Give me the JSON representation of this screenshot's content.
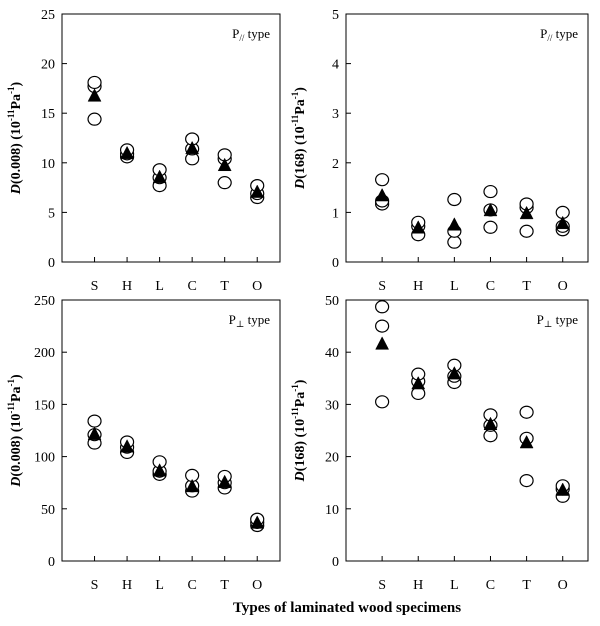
{
  "figure": {
    "x_title": "Types of laminated wood specimens"
  },
  "chart_data": [
    {
      "type": "scatter",
      "panel": "top-left",
      "annotation": {
        "main": "P",
        "sub": "//",
        "suffix": " type"
      },
      "ylabel": {
        "main": "D",
        "arg": "(0.008)",
        "unit_pre": " (10",
        "unit_exp1": "-11",
        "unit_mid": "Pa",
        "unit_exp2": "-1",
        "unit_post": ")"
      },
      "ylim": [
        0,
        25
      ],
      "yticks": [
        0,
        5,
        10,
        15,
        20,
        25
      ],
      "categories": [
        "S",
        "H",
        "L",
        "C",
        "T",
        "O"
      ],
      "series": [
        {
          "marker": "open-circle",
          "values": [
            [
              14.4,
              17.7,
              18.1
            ],
            [
              10.6,
              10.9,
              11.3
            ],
            [
              7.7,
              8.5,
              9.3
            ],
            [
              10.4,
              11.4,
              12.4
            ],
            [
              8.0,
              10.4,
              10.8
            ],
            [
              6.5,
              6.9,
              7.7
            ]
          ]
        },
        {
          "marker": "filled-triangle",
          "values": [
            16.7,
            10.9,
            8.5,
            11.4,
            9.7,
            7.0
          ]
        }
      ]
    },
    {
      "type": "scatter",
      "panel": "top-right",
      "annotation": {
        "main": "P",
        "sub": "//",
        "suffix": " type"
      },
      "ylabel": {
        "main": "D",
        "arg": "(168)",
        "unit_pre": " (10",
        "unit_exp1": "-11",
        "unit_mid": "Pa",
        "unit_exp2": "-1",
        "unit_post": ")"
      },
      "ylim": [
        0,
        5
      ],
      "yticks": [
        0,
        1,
        2,
        3,
        4,
        5
      ],
      "categories": [
        "S",
        "H",
        "L",
        "C",
        "T",
        "O"
      ],
      "series": [
        {
          "marker": "open-circle",
          "values": [
            [
              1.17,
              1.23,
              1.66
            ],
            [
              0.55,
              0.72,
              0.8
            ],
            [
              0.4,
              0.62,
              1.26
            ],
            [
              0.7,
              1.05,
              1.42
            ],
            [
              0.62,
              1.1,
              1.17
            ],
            [
              0.65,
              0.72,
              1.0
            ]
          ]
        },
        {
          "marker": "filled-triangle",
          "values": [
            1.33,
            0.68,
            0.74,
            1.03,
            0.97,
            0.77
          ]
        }
      ]
    },
    {
      "type": "scatter",
      "panel": "bottom-left",
      "annotation": {
        "main": "P",
        "sub": "⊥",
        "suffix": " type"
      },
      "ylabel": {
        "main": "D",
        "arg": "(0.008)",
        "unit_pre": " (10",
        "unit_exp1": "-11",
        "unit_mid": "Pa",
        "unit_exp2": "-1",
        "unit_post": ")"
      },
      "ylim": [
        0,
        250
      ],
      "yticks": [
        0,
        50,
        100,
        150,
        200,
        250
      ],
      "categories": [
        "S",
        "H",
        "L",
        "C",
        "T",
        "O"
      ],
      "series": [
        {
          "marker": "open-circle",
          "values": [
            [
              113,
              121,
              134
            ],
            [
              104,
              109,
              114
            ],
            [
              83,
              86,
              95
            ],
            [
              67,
              72,
              82
            ],
            [
              70,
              75,
              81
            ],
            [
              34,
              37,
              40
            ]
          ]
        },
        {
          "marker": "filled-triangle",
          "values": [
            121,
            109,
            86,
            71,
            75,
            36
          ]
        }
      ]
    },
    {
      "type": "scatter",
      "panel": "bottom-right",
      "annotation": {
        "main": "P",
        "sub": "⊥",
        "suffix": " type"
      },
      "ylabel": {
        "main": "D",
        "arg": "(168)",
        "unit_pre": " (10",
        "unit_exp1": "-11",
        "unit_mid": "Pa",
        "unit_exp2": "-1",
        "unit_post": ")"
      },
      "ylim": [
        0,
        50
      ],
      "yticks": [
        0,
        10,
        20,
        30,
        40,
        50
      ],
      "categories": [
        "S",
        "H",
        "L",
        "C",
        "T",
        "O"
      ],
      "series": [
        {
          "marker": "open-circle",
          "values": [
            [
              30.5,
              45,
              48.7
            ],
            [
              32.1,
              34.4,
              35.8
            ],
            [
              34.2,
              35.4,
              37.5
            ],
            [
              24,
              26,
              28
            ],
            [
              15.4,
              23.5,
              28.5
            ],
            [
              12.4,
              13.8,
              14.4
            ]
          ]
        },
        {
          "marker": "filled-triangle",
          "values": [
            41.5,
            33.9,
            35.8,
            26.1,
            22.6,
            13.5
          ]
        }
      ]
    }
  ]
}
